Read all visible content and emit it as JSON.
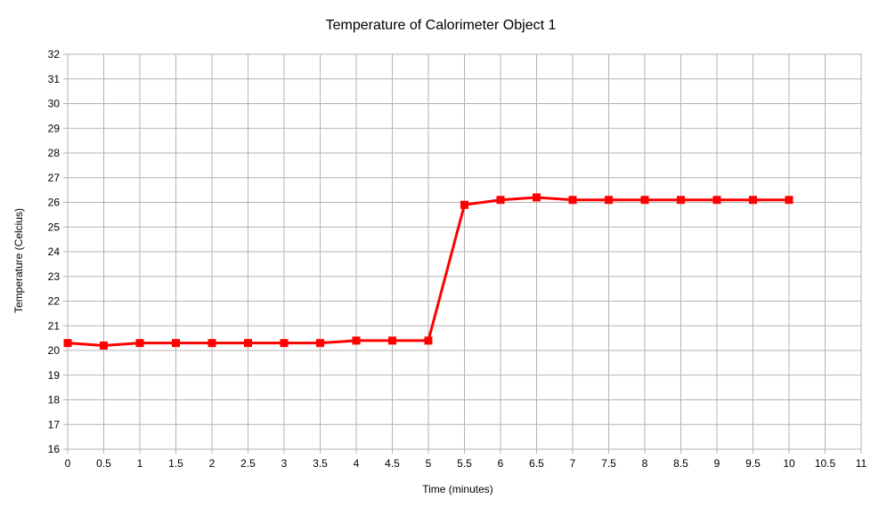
{
  "chart_data": {
    "type": "line",
    "title": "Temperature of Calorimeter Object 1",
    "xlabel": "Time (minutes)",
    "ylabel": "Temperature (Celcius)",
    "xlim": [
      0,
      11
    ],
    "ylim": [
      16,
      32
    ],
    "x_ticks": [
      0,
      0.5,
      1,
      1.5,
      2,
      2.5,
      3,
      3.5,
      4,
      4.5,
      5,
      5.5,
      6,
      6.5,
      7,
      7.5,
      8,
      8.5,
      9,
      9.5,
      10,
      10.5,
      11
    ],
    "y_ticks": [
      16,
      17,
      18,
      19,
      20,
      21,
      22,
      23,
      24,
      25,
      26,
      27,
      28,
      29,
      30,
      31,
      32
    ],
    "grid": true,
    "legend": "none",
    "series": [
      {
        "color": "#ff0000",
        "marker": "square",
        "x": [
          0,
          0.5,
          1,
          1.5,
          2,
          2.5,
          3,
          3.5,
          4,
          4.5,
          5,
          5.5,
          6,
          6.5,
          7,
          7.5,
          8,
          8.5,
          9,
          9.5,
          10
        ],
        "y": [
          20.3,
          20.2,
          20.3,
          20.3,
          20.3,
          20.3,
          20.3,
          20.3,
          20.4,
          20.4,
          20.4,
          25.9,
          26.1,
          26.2,
          26.1,
          26.1,
          26.1,
          26.1,
          26.1,
          26.1,
          26.1
        ]
      }
    ],
    "colors": {
      "grid": "#b3b3b3",
      "axis": "#b3b3b3",
      "background": "#ffffff",
      "text": "#000000"
    }
  }
}
